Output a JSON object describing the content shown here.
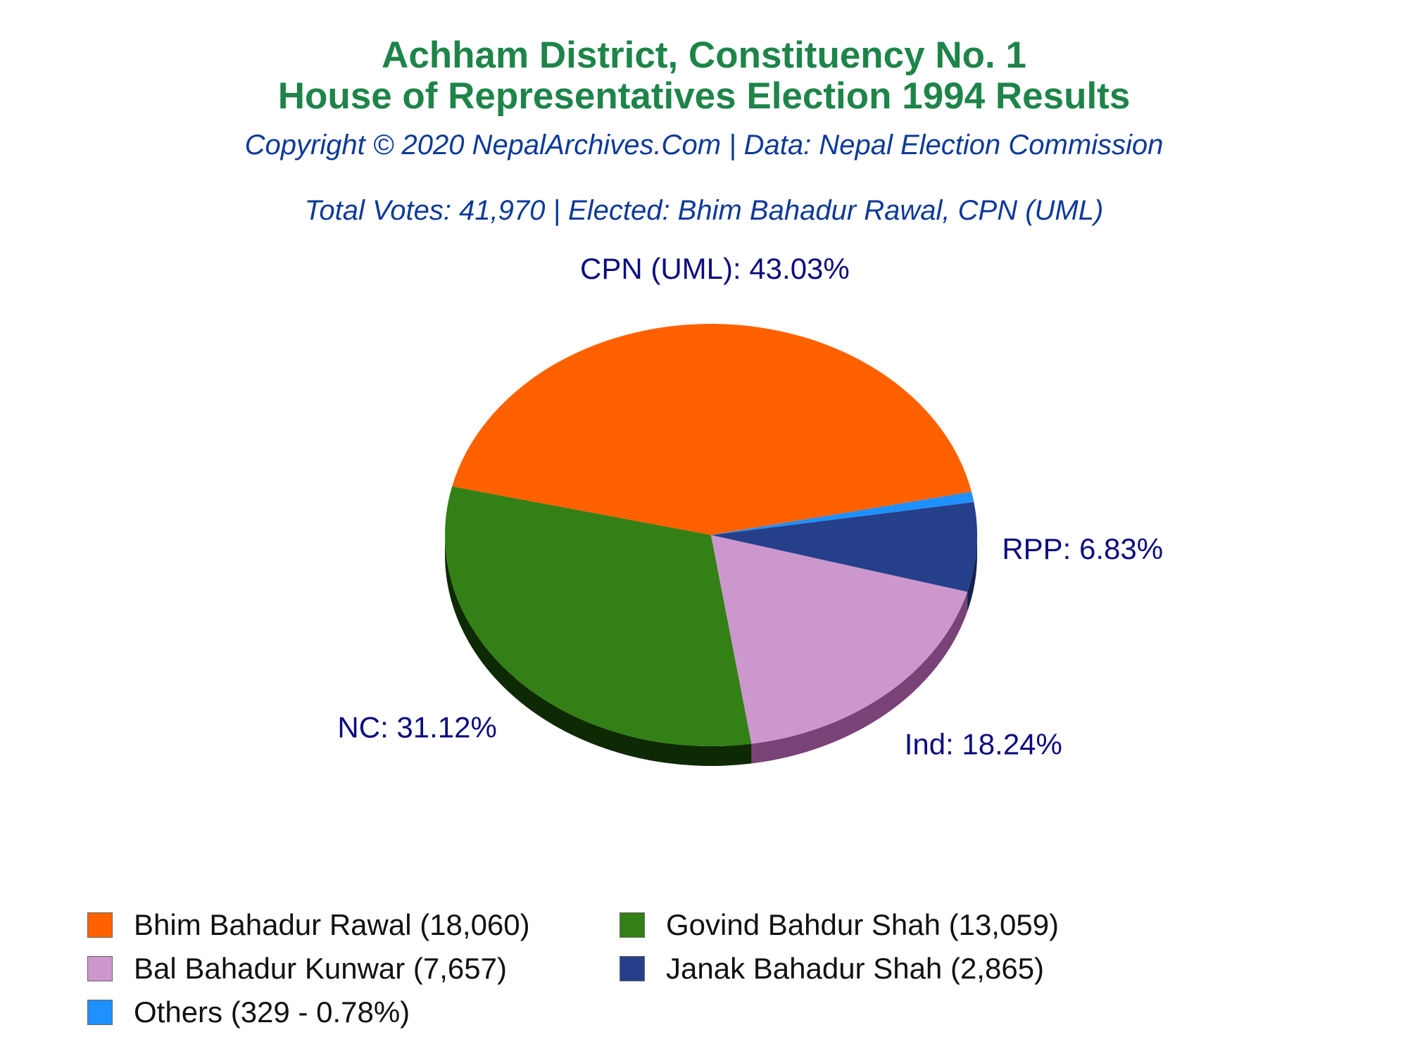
{
  "chart_data": {
    "type": "pie",
    "title_line1": "Achham District, Constituency No. 1",
    "title_line2": "House of Representatives Election 1994 Results",
    "subtitle": "Copyright © 2020 NepalArchives.Com | Data: Nepal Election Commission",
    "info": "Total Votes: 41,970 | Elected: Bhim Bahadur Rawal, CPN (UML)",
    "slices": [
      {
        "party": "CPN (UML)",
        "label": "CPN (UML): 43.03%",
        "percent": 43.03,
        "color": "#ff6100",
        "side_color": "#a33e00"
      },
      {
        "party": "NC",
        "label": "NC: 31.12%",
        "percent": 31.12,
        "color": "#338016",
        "side_color": "#0e2a04"
      },
      {
        "party": "Ind",
        "label": "Ind: 18.24%",
        "percent": 18.24,
        "color": "#cc97cc",
        "side_color": "#7a4378"
      },
      {
        "party": "RPP",
        "label": "RPP: 6.83%",
        "percent": 6.83,
        "color": "#263f8a",
        "side_color": "#14224d"
      },
      {
        "party": "Others",
        "label": "",
        "percent": 0.78,
        "color": "#1e90ff",
        "side_color": "#1460a8"
      }
    ],
    "legend": [
      {
        "label": "Bhim Bahadur Rawal (18,060)",
        "color": "#ff6100"
      },
      {
        "label": "Govind Bahdur Shah (13,059)",
        "color": "#338016"
      },
      {
        "label": "Bal Bahadur Kunwar (7,657)",
        "color": "#cc97cc"
      },
      {
        "label": "Janak Bahadur Shah (2,865)",
        "color": "#263f8a"
      },
      {
        "label": "Others (329 - 0.78%)",
        "color": "#1e90ff"
      }
    ],
    "label_color": "#0c0c80"
  }
}
